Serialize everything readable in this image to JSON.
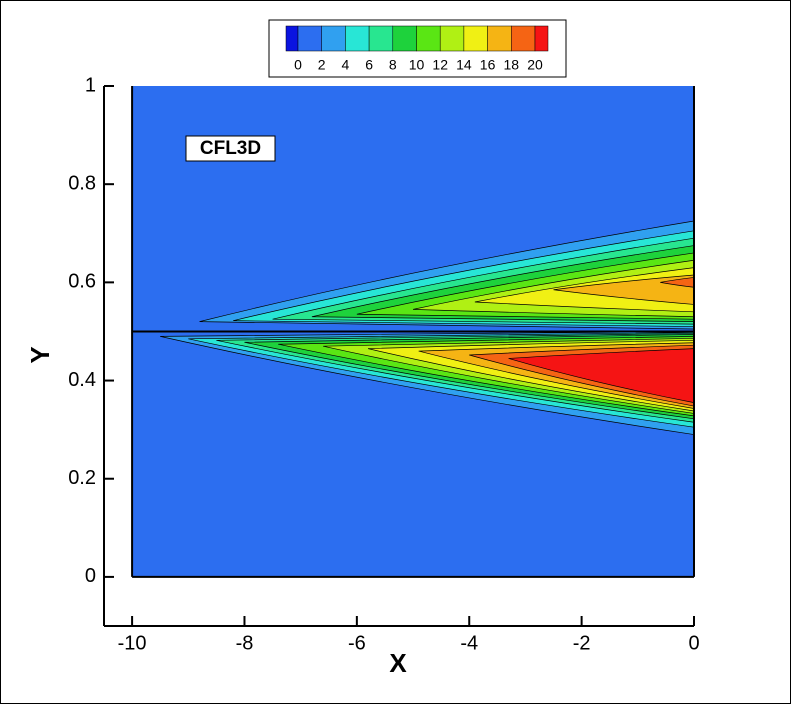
{
  "chart_data": {
    "type": "contour",
    "annotation": "CFL3D",
    "x_label": "X",
    "y_label": "Y",
    "xlim": [
      -10.5,
      0
    ],
    "ylim": [
      -0.1,
      1
    ],
    "xticks": [
      -10,
      -8,
      -6,
      -4,
      -2,
      0
    ],
    "yticks": [
      0,
      0.2,
      0.4,
      0.6,
      0.8,
      1
    ],
    "domain_x": [
      -10,
      0
    ],
    "domain_y": [
      0,
      1
    ],
    "plate_y": 0.5,
    "colorbar": {
      "levels": [
        0,
        2,
        4,
        6,
        8,
        10,
        12,
        14,
        16,
        18,
        20
      ],
      "colors": [
        "#0a14e0",
        "#2c6ef0",
        "#30a0f0",
        "#28e6d6",
        "#28e690",
        "#1ed23c",
        "#5ae614",
        "#b0f014",
        "#f0f014",
        "#f5b414",
        "#f56414",
        "#f51414"
      ]
    },
    "contours": [
      {
        "level": 2,
        "x_start": -9.5,
        "y_start": 0.49,
        "y_low": 0.29,
        "y_high": 0.5
      },
      {
        "level": 4,
        "x_start": -9.0,
        "y_start": 0.485,
        "y_low": 0.305,
        "y_high": 0.498
      },
      {
        "level": 6,
        "x_start": -8.5,
        "y_start": 0.482,
        "y_low": 0.315,
        "y_high": 0.496
      },
      {
        "level": 8,
        "x_start": -8.0,
        "y_start": 0.478,
        "y_low": 0.322,
        "y_high": 0.494
      },
      {
        "level": 10,
        "x_start": -7.4,
        "y_start": 0.474,
        "y_low": 0.328,
        "y_high": 0.49
      },
      {
        "level": 12,
        "x_start": -6.6,
        "y_start": 0.47,
        "y_low": 0.333,
        "y_high": 0.486
      },
      {
        "level": 14,
        "x_start": -5.8,
        "y_start": 0.465,
        "y_low": 0.338,
        "y_high": 0.482
      },
      {
        "level": 16,
        "x_start": -4.9,
        "y_start": 0.46,
        "y_low": 0.343,
        "y_high": 0.477
      },
      {
        "level": 18,
        "x_start": -4.0,
        "y_start": 0.452,
        "y_low": 0.348,
        "y_high": 0.472
      },
      {
        "level": 20,
        "x_start": -3.3,
        "y_start": 0.445,
        "y_low": 0.355,
        "y_high": 0.465
      },
      {
        "level": 2,
        "x_start": -8.8,
        "y_start": 0.52,
        "y_low": 0.505,
        "y_high": 0.725
      },
      {
        "level": 4,
        "x_start": -8.2,
        "y_start": 0.522,
        "y_low": 0.51,
        "y_high": 0.705
      },
      {
        "level": 6,
        "x_start": -7.5,
        "y_start": 0.525,
        "y_low": 0.515,
        "y_high": 0.69
      },
      {
        "level": 8,
        "x_start": -6.8,
        "y_start": 0.53,
        "y_low": 0.52,
        "y_high": 0.675
      },
      {
        "level": 10,
        "x_start": -6.0,
        "y_start": 0.535,
        "y_low": 0.525,
        "y_high": 0.66
      },
      {
        "level": 12,
        "x_start": -5.0,
        "y_start": 0.545,
        "y_low": 0.53,
        "y_high": 0.645
      },
      {
        "level": 14,
        "x_start": -3.9,
        "y_start": 0.56,
        "y_low": 0.54,
        "y_high": 0.63
      },
      {
        "level": 16,
        "x_start": -2.5,
        "y_start": 0.585,
        "y_low": 0.555,
        "y_high": 0.615
      },
      {
        "level": 18,
        "x_start": -0.6,
        "y_start": 0.6,
        "y_low": 0.59,
        "y_high": 0.61
      }
    ]
  }
}
